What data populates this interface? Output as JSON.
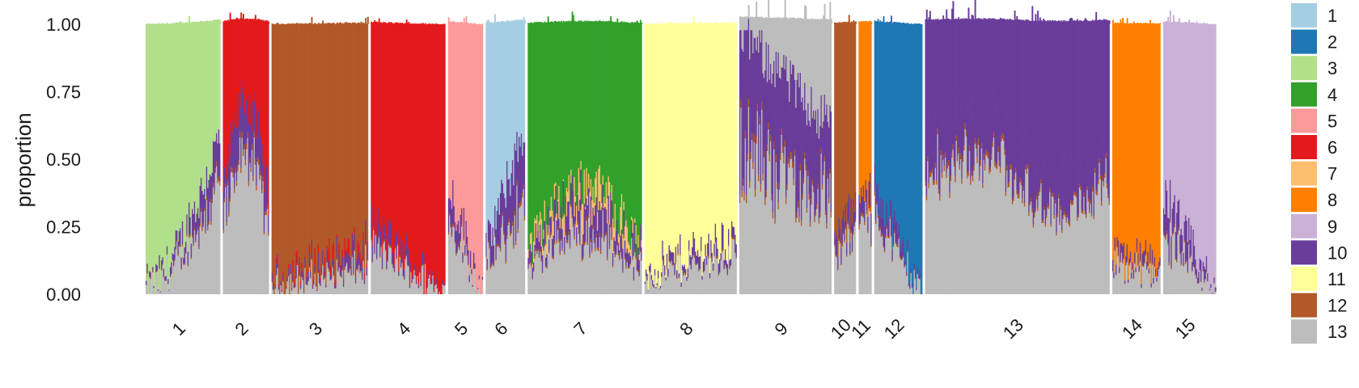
{
  "chart_data": {
    "type": "stacked-bar",
    "ylabel": "proportion",
    "ylim": [
      0,
      1
    ],
    "yticks": [
      "0.00",
      "0.25",
      "0.50",
      "0.75",
      "1.00"
    ],
    "groups": [
      {
        "label": "1",
        "dominant": "3",
        "bars": 68
      },
      {
        "label": "2",
        "dominant": "6",
        "bars": 42
      },
      {
        "label": "3",
        "dominant": "12",
        "bars": 88
      },
      {
        "label": "4",
        "dominant": "6",
        "bars": 68
      },
      {
        "label": "5",
        "dominant": "5",
        "bars": 32
      },
      {
        "label": "6",
        "dominant": "1",
        "bars": 36
      },
      {
        "label": "7",
        "dominant": "4",
        "bars": 104
      },
      {
        "label": "8",
        "dominant": "11",
        "bars": 84
      },
      {
        "label": "9",
        "dominant": "13",
        "bars": 84
      },
      {
        "label": "10",
        "dominant": "12",
        "bars": 20
      },
      {
        "label": "11",
        "dominant": "8",
        "bars": 12
      },
      {
        "label": "12",
        "dominant": "2",
        "bars": 44
      },
      {
        "label": "13",
        "dominant": "10",
        "bars": 168
      },
      {
        "label": "14",
        "dominant": "8",
        "bars": 44
      },
      {
        "label": "15",
        "dominant": "9",
        "bars": 48
      }
    ],
    "legend": [
      {
        "label": "1",
        "color": "#a6cee3"
      },
      {
        "label": "2",
        "color": "#1f78b4"
      },
      {
        "label": "3",
        "color": "#b2df8a"
      },
      {
        "label": "4",
        "color": "#33a02c"
      },
      {
        "label": "5",
        "color": "#fb9a99"
      },
      {
        "label": "6",
        "color": "#e31a1c"
      },
      {
        "label": "7",
        "color": "#fdbf6f"
      },
      {
        "label": "8",
        "color": "#ff7f00"
      },
      {
        "label": "9",
        "color": "#cab2d6"
      },
      {
        "label": "10",
        "color": "#6a3d9a"
      },
      {
        "label": "11",
        "color": "#ffff99"
      },
      {
        "label": "12",
        "color": "#b15928"
      },
      {
        "label": "13",
        "color": "#bdbdbd"
      }
    ]
  }
}
